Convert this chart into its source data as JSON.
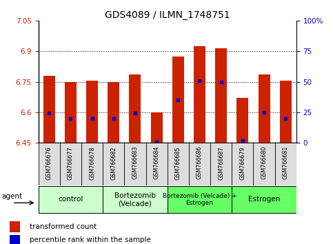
{
  "title": "GDS4089 / ILMN_1748751",
  "samples": [
    "GSM766676",
    "GSM766677",
    "GSM766678",
    "GSM766682",
    "GSM766683",
    "GSM766684",
    "GSM766685",
    "GSM766686",
    "GSM766687",
    "GSM766679",
    "GSM766680",
    "GSM766681"
  ],
  "bar_values": [
    6.78,
    6.75,
    6.755,
    6.75,
    6.785,
    6.6,
    6.875,
    6.925,
    6.915,
    6.67,
    6.785,
    6.755
  ],
  "blue_dot_values": [
    6.595,
    6.57,
    6.57,
    6.57,
    6.595,
    6.455,
    6.66,
    6.755,
    6.75,
    6.46,
    6.6,
    6.57
  ],
  "ymin": 6.45,
  "ymax": 7.05,
  "yticks_left": [
    6.45,
    6.6,
    6.75,
    6.9,
    7.05
  ],
  "yticks_right_labels": [
    "0",
    "25",
    "50",
    "75",
    "100%"
  ],
  "grid_lines": [
    6.6,
    6.75,
    6.9
  ],
  "groups": [
    {
      "label": "control",
      "start": 0,
      "end": 2,
      "color": "#ccffcc"
    },
    {
      "label": "Bortezomib\n(Velcade)",
      "start": 3,
      "end": 5,
      "color": "#ccffcc"
    },
    {
      "label": "Bortezomib (Velcade) +\nEstrogen",
      "start": 6,
      "end": 8,
      "color": "#66ff66"
    },
    {
      "label": "Estrogen",
      "start": 9,
      "end": 11,
      "color": "#66ff66"
    }
  ],
  "bar_color": "#cc2200",
  "dot_color": "#0000cc",
  "bar_width": 0.55,
  "agent_label": "agent",
  "legend_red": "transformed count",
  "legend_blue": "percentile rank within the sample",
  "title_fontsize": 10,
  "tick_fontsize": 7.5,
  "label_fontsize": 7.5
}
